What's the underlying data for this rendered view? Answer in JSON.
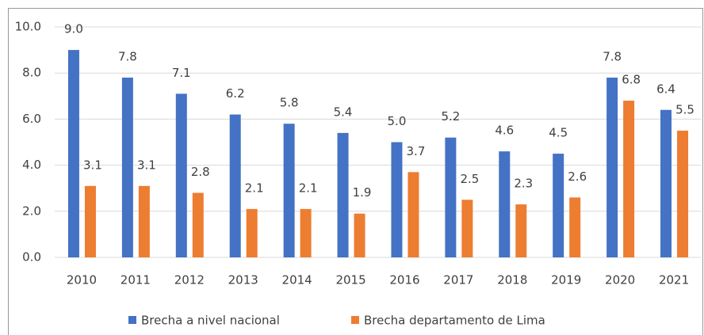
{
  "chart_data": {
    "type": "bar",
    "categories": [
      "2010",
      "2011",
      "2012",
      "2013",
      "2014",
      "2015",
      "2016",
      "2017",
      "2018",
      "2019",
      "2020",
      "2021"
    ],
    "series": [
      {
        "name": "Brecha a nivel nacional",
        "color": "#4472c4",
        "values": [
          9.0,
          7.8,
          7.1,
          6.2,
          5.8,
          5.4,
          5.0,
          5.2,
          4.6,
          4.5,
          7.8,
          6.4
        ],
        "value_labels": [
          "9.0",
          "7.8",
          "7.1",
          "6.2",
          "5.8",
          "5.4",
          "5.0",
          "5.2",
          "4.6",
          "4.5",
          "7.8",
          "6.4"
        ]
      },
      {
        "name": "Brecha departamento de Lima",
        "color": "#ed7d31",
        "values": [
          3.1,
          3.1,
          2.8,
          2.1,
          2.1,
          1.9,
          3.7,
          2.5,
          2.3,
          2.6,
          6.8,
          5.5
        ],
        "value_labels": [
          "3.1",
          "3.1",
          "2.8",
          "2.1",
          "2.1",
          "1.9",
          "3.7",
          "2.5",
          "2.3",
          "2.6",
          "6.8",
          "5.5"
        ]
      }
    ],
    "ylim": [
      0,
      10
    ],
    "yticks": [
      {
        "value": 0,
        "label": "0.0"
      },
      {
        "value": 2,
        "label": "2.0"
      },
      {
        "value": 4,
        "label": "4.0"
      },
      {
        "value": 6,
        "label": "6.0"
      },
      {
        "value": 8,
        "label": "8.0"
      },
      {
        "value": 10,
        "label": "10.0"
      }
    ],
    "grid": true,
    "legend": "bottom"
  }
}
